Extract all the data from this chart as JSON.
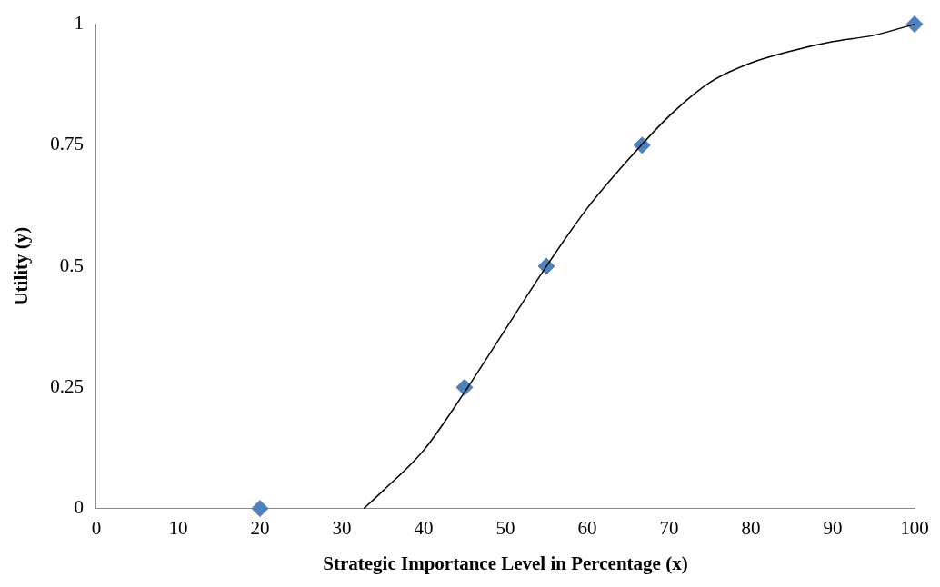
{
  "chart_data": {
    "type": "scatter",
    "xlabel": "Strategic Importance Level in Percentage (x)",
    "ylabel": "Utility (y)",
    "xlim": [
      0,
      100
    ],
    "ylim": [
      0,
      1
    ],
    "xticks": [
      0,
      10,
      20,
      30,
      40,
      50,
      60,
      70,
      80,
      90,
      100
    ],
    "yticks": [
      0,
      0.25,
      0.5,
      0.75,
      1
    ],
    "grid": false,
    "legend": false,
    "marker": "diamond",
    "series": [
      {
        "type": "line",
        "color": "#000000",
        "marker": "none",
        "line_style": "solid",
        "x": [
          32.7,
          35,
          40,
          45,
          50,
          55,
          60,
          65,
          70,
          75,
          80,
          85,
          90,
          95,
          100
        ],
        "values": [
          0,
          0.036,
          0.12,
          0.24,
          0.37,
          0.5,
          0.62,
          0.72,
          0.81,
          0.88,
          0.92,
          0.945,
          0.964,
          0.977,
          1
        ]
      },
      {
        "color": "#4f81bd",
        "x": [
          20,
          45,
          55,
          66.7,
          100
        ],
        "values": [
          0,
          0.25,
          0.5,
          0.75,
          1
        ]
      }
    ]
  }
}
